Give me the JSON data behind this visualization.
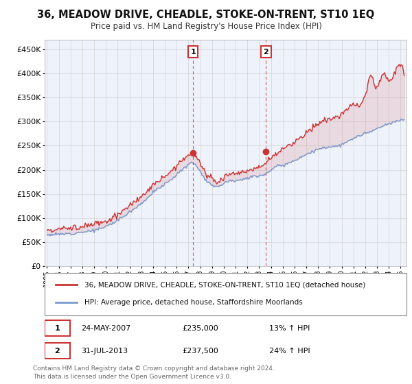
{
  "title": "36, MEADOW DRIVE, CHEADLE, STOKE-ON-TRENT, ST10 1EQ",
  "subtitle": "Price paid vs. HM Land Registry's House Price Index (HPI)",
  "ylabel_ticks": [
    "£0",
    "£50K",
    "£100K",
    "£150K",
    "£200K",
    "£250K",
    "£300K",
    "£350K",
    "£400K",
    "£450K"
  ],
  "ytick_values": [
    0,
    50000,
    100000,
    150000,
    200000,
    250000,
    300000,
    350000,
    400000,
    450000
  ],
  "ylim": [
    0,
    470000
  ],
  "xlim_start": 1994.8,
  "xlim_end": 2025.5,
  "hpi_color": "#7799cc",
  "price_color": "#cc3333",
  "sale1_x": 2007.39,
  "sale1_y": 235000,
  "sale1_label": "1",
  "sale2_x": 2013.58,
  "sale2_y": 237500,
  "sale2_label": "2",
  "legend_line1": "36, MEADOW DRIVE, CHEADLE, STOKE-ON-TRENT, ST10 1EQ (detached house)",
  "legend_line2": "HPI: Average price, detached house, Staffordshire Moorlands",
  "annotation1_date": "24-MAY-2007",
  "annotation1_price": "£235,000",
  "annotation1_hpi": "13% ↑ HPI",
  "annotation2_date": "31-JUL-2013",
  "annotation2_price": "£237,500",
  "annotation2_hpi": "24% ↑ HPI",
  "footnote1": "Contains HM Land Registry data © Crown copyright and database right 2024.",
  "footnote2": "This data is licensed under the Open Government Licence v3.0.",
  "background_color": "#ffffff",
  "plot_bg_color": "#eef2fa",
  "grid_color": "#cccccc",
  "shade_color": "#ccd9f0"
}
